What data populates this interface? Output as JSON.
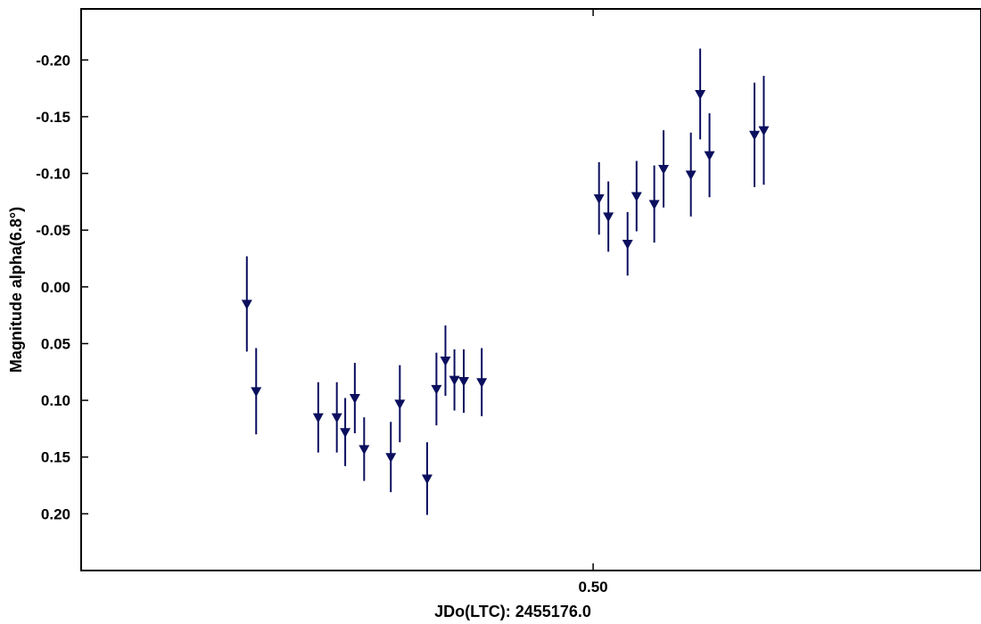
{
  "colors": {
    "marker": "#0b0f5e",
    "axis": "#000000",
    "background": "#ffffff"
  },
  "chart_data": {
    "type": "scatter",
    "marker": "triangle-down",
    "error_bars": true,
    "xlabel": "JDo(LTC): 2455176.0",
    "ylabel": "Magnitude alpha(6.8°)",
    "y_inverted": true,
    "xlim": [
      0.335,
      0.625
    ],
    "ylim": [
      0.25,
      -0.245
    ],
    "grid": false,
    "legend": "none",
    "x_ticks": [
      {
        "value": 0.5,
        "label": "0.50"
      }
    ],
    "y_ticks": [
      {
        "value": -0.2,
        "label": "-0.20"
      },
      {
        "value": -0.15,
        "label": "-0.15"
      },
      {
        "value": -0.1,
        "label": "-0.10"
      },
      {
        "value": -0.05,
        "label": "-0.05"
      },
      {
        "value": 0.0,
        "label": "0.00"
      },
      {
        "value": 0.05,
        "label": "0.05"
      },
      {
        "value": 0.1,
        "label": "0.10"
      },
      {
        "value": 0.15,
        "label": "0.15"
      },
      {
        "value": 0.2,
        "label": "0.20"
      }
    ],
    "series": [
      {
        "points": [
          {
            "x": 0.3884,
            "y": 0.015,
            "err": 0.042
          },
          {
            "x": 0.3914,
            "y": 0.092,
            "err": 0.038
          },
          {
            "x": 0.4114,
            "y": 0.115,
            "err": 0.031
          },
          {
            "x": 0.4174,
            "y": 0.115,
            "err": 0.031
          },
          {
            "x": 0.4201,
            "y": 0.128,
            "err": 0.03
          },
          {
            "x": 0.4232,
            "y": 0.098,
            "err": 0.031
          },
          {
            "x": 0.4262,
            "y": 0.143,
            "err": 0.028
          },
          {
            "x": 0.4348,
            "y": 0.15,
            "err": 0.031
          },
          {
            "x": 0.4377,
            "y": 0.103,
            "err": 0.034
          },
          {
            "x": 0.4465,
            "y": 0.169,
            "err": 0.032
          },
          {
            "x": 0.4495,
            "y": 0.09,
            "err": 0.032
          },
          {
            "x": 0.4524,
            "y": 0.065,
            "err": 0.031
          },
          {
            "x": 0.4553,
            "y": 0.082,
            "err": 0.027
          },
          {
            "x": 0.4583,
            "y": 0.083,
            "err": 0.028
          },
          {
            "x": 0.4641,
            "y": 0.084,
            "err": 0.03
          },
          {
            "x": 0.5019,
            "y": -0.078,
            "err": 0.032
          },
          {
            "x": 0.5049,
            "y": -0.062,
            "err": 0.031
          },
          {
            "x": 0.5111,
            "y": -0.038,
            "err": 0.028
          },
          {
            "x": 0.514,
            "y": -0.08,
            "err": 0.031
          },
          {
            "x": 0.5197,
            "y": -0.073,
            "err": 0.034
          },
          {
            "x": 0.5227,
            "y": -0.104,
            "err": 0.034
          },
          {
            "x": 0.5315,
            "y": -0.099,
            "err": 0.037
          },
          {
            "x": 0.5345,
            "y": -0.17,
            "err": 0.04
          },
          {
            "x": 0.5375,
            "y": -0.116,
            "err": 0.037
          },
          {
            "x": 0.552,
            "y": -0.134,
            "err": 0.046
          },
          {
            "x": 0.555,
            "y": -0.138,
            "err": 0.048
          }
        ]
      }
    ]
  }
}
